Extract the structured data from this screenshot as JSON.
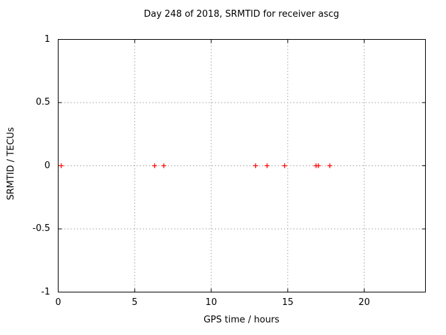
{
  "title": "Day 248 of 2018, SRMTID for receiver ascg",
  "chart_data": {
    "type": "scatter",
    "title": "Day 248 of 2018, SRMTID for receiver ascg",
    "xlabel": "GPS time / hours",
    "ylabel": "SRMTID / TECUs",
    "xlim": [
      0,
      24
    ],
    "ylim": [
      -1,
      1
    ],
    "x_ticks": [
      0,
      5,
      10,
      15,
      20
    ],
    "x_tick_labels": [
      "0",
      "5",
      "10",
      "15",
      "20"
    ],
    "y_ticks": [
      1,
      0.5,
      0,
      -0.5,
      -1
    ],
    "y_tick_labels": [
      "1",
      "0.5",
      "0",
      "-0.5",
      "-1"
    ],
    "grid": true,
    "legend": "none",
    "series": [
      {
        "name": "SRMTID",
        "marker": "plus",
        "color": "#ff0000",
        "points": [
          [
            0.2,
            0
          ],
          [
            6.3,
            0
          ],
          [
            6.9,
            0
          ],
          [
            12.9,
            0
          ],
          [
            13.65,
            0
          ],
          [
            14.8,
            0
          ],
          [
            16.85,
            0
          ],
          [
            17.0,
            0
          ],
          [
            17.75,
            0
          ]
        ]
      }
    ]
  },
  "colors": {
    "background": "#ffffff",
    "axis": "#000000",
    "grid": "#9e9e9e",
    "marker": "#ff0000",
    "text": "#000000"
  }
}
